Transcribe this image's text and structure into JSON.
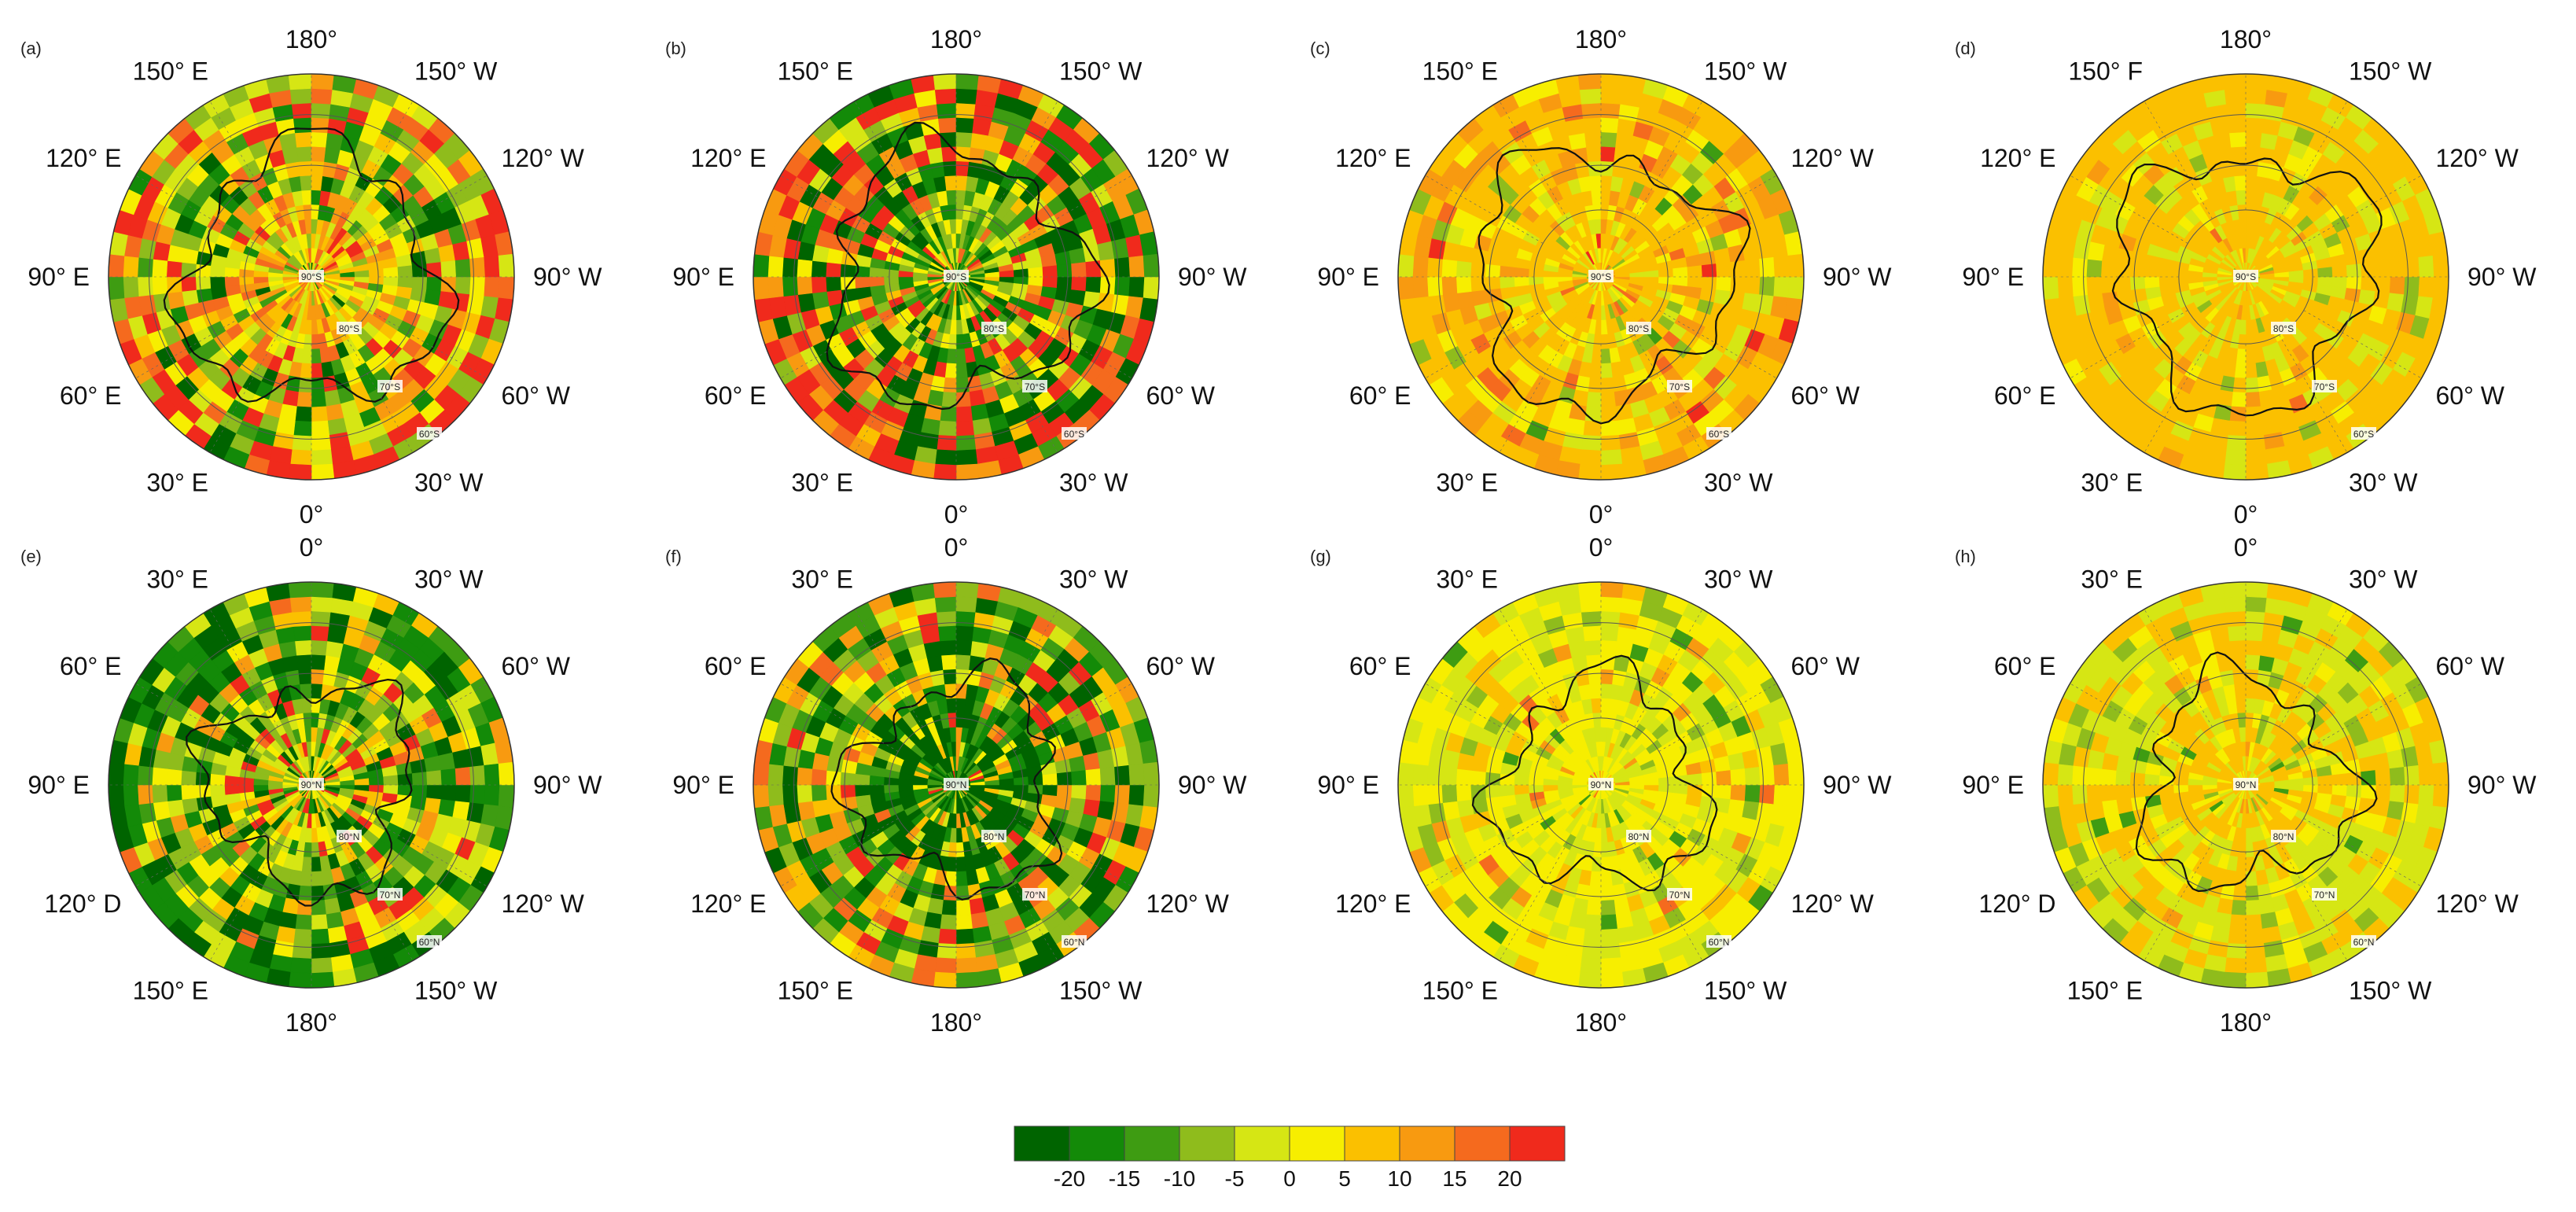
{
  "colorbar": {
    "colors": [
      "#006400",
      "#138a08",
      "#3e9c12",
      "#8fbc1c",
      "#d6e614",
      "#f7ee00",
      "#fbc000",
      "#f89a10",
      "#f56a1e",
      "#f02a1c"
    ],
    "ticks": [
      "-20",
      "-15",
      "-10",
      "-5",
      "0",
      "5",
      "10",
      "15",
      "20"
    ]
  },
  "panels": [
    {
      "id": "a",
      "label": "(a)",
      "hemisphere": "south",
      "theme": "mixed-strong",
      "lon_labels": {
        "top": "180°",
        "top_left": "150° E",
        "top_right": "150° W",
        "upper_left": "120° E",
        "upper_right": "120° W",
        "left": "90° E",
        "right": "90° W",
        "lower_left": "60° E",
        "lower_right": "60° W",
        "bottom_left": "30° E",
        "bottom_right": "30° W",
        "bottom": "0°"
      },
      "lat_labels": [
        "90°S",
        "80°S",
        "70°S",
        "60°S"
      ]
    },
    {
      "id": "b",
      "label": "(b)",
      "hemisphere": "south",
      "theme": "red-green",
      "lon_labels": {
        "top": "180°",
        "top_left": "150° E",
        "top_right": "150° W",
        "upper_left": "120° E",
        "upper_right": "120° W",
        "left": "90° E",
        "right": "90° W",
        "lower_left": "60° E",
        "lower_right": "60° W",
        "bottom_left": "30° E",
        "bottom_right": "30° W",
        "bottom": "0°"
      },
      "lat_labels": [
        "90°S",
        "80°S",
        "70°S",
        "60°S"
      ]
    },
    {
      "id": "c",
      "label": "(c)",
      "hemisphere": "south",
      "theme": "orange",
      "lon_labels": {
        "top": "180°",
        "top_left": "150° E",
        "top_right": "150° W",
        "upper_left": "120° E",
        "upper_right": "120° W",
        "left": "90° E",
        "right": "90° W",
        "lower_left": "60° E",
        "lower_right": "60° W",
        "bottom_left": "30° E",
        "bottom_right": "30° W",
        "bottom": "0°"
      },
      "lat_labels": [
        "90°S",
        "80°S",
        "70°S",
        "60°S"
      ]
    },
    {
      "id": "d",
      "label": "(d)",
      "hemisphere": "south",
      "theme": "orange-light",
      "lon_labels": {
        "top": "180°",
        "top_left": "150° F",
        "top_right": "150° W",
        "upper_left": "120° E",
        "upper_right": "120° W",
        "left": "90° E",
        "right": "90° W",
        "lower_left": "60° E",
        "lower_right": "60° W",
        "bottom_left": "30° E",
        "bottom_right": "30° W",
        "bottom": "0°"
      },
      "lat_labels": [
        "90°S",
        "80°S",
        "70°S",
        "60°S"
      ]
    },
    {
      "id": "e",
      "label": "(e)",
      "hemisphere": "north",
      "theme": "green-mixed",
      "lon_labels": {
        "top": "0°",
        "top_left": "30° E",
        "top_right": "30° W",
        "upper_left": "60° E",
        "upper_right": "60° W",
        "left": "90° E",
        "right": "90° W",
        "lower_left": "120° D",
        "lower_right": "120° W",
        "bottom_left": "150° E",
        "bottom_right": "150° W",
        "bottom": "180°"
      },
      "lat_labels": [
        "90°N",
        "80°N",
        "70°N",
        "60°N"
      ]
    },
    {
      "id": "f",
      "label": "(f)",
      "hemisphere": "north",
      "theme": "dark-green-center",
      "lon_labels": {
        "top": "0°",
        "top_left": "30° E",
        "top_right": "30° W",
        "upper_left": "60° E",
        "upper_right": "60° W",
        "left": "90° E",
        "right": "90° W",
        "lower_left": "120° E",
        "lower_right": "120° W",
        "bottom_left": "150° E",
        "bottom_right": "150° W",
        "bottom": "180°"
      },
      "lat_labels": [
        "90°N",
        "80°N",
        "70°N",
        "60°N"
      ]
    },
    {
      "id": "g",
      "label": "(g)",
      "hemisphere": "north",
      "theme": "yellow",
      "lon_labels": {
        "top": "0°",
        "top_left": "30° E",
        "top_right": "30° W",
        "upper_left": "60° E",
        "upper_right": "60° W",
        "left": "90° E",
        "right": "90° W",
        "lower_left": "120° E",
        "lower_right": "120° W",
        "bottom_left": "150° E",
        "bottom_right": "150° W",
        "bottom": "180°"
      },
      "lat_labels": [
        "90°N",
        "80°N",
        "70°N",
        "60°N"
      ]
    },
    {
      "id": "h",
      "label": "(h)",
      "hemisphere": "north",
      "theme": "green-orange",
      "lon_labels": {
        "top": "0°",
        "top_left": "30° E",
        "top_right": "30° W",
        "upper_left": "60° E",
        "upper_right": "60° W",
        "left": "90° E",
        "right": "90° W",
        "lower_left": "120° D",
        "lower_right": "120° W",
        "bottom_left": "150° E",
        "bottom_right": "150° W",
        "bottom": "180°"
      },
      "lat_labels": [
        "90°N",
        "80°N",
        "70°N",
        "60°N"
      ]
    }
  ]
}
